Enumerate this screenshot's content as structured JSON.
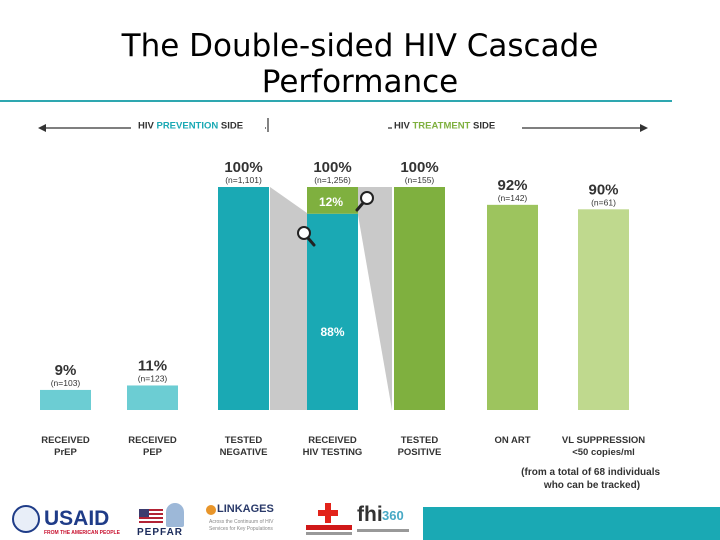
{
  "slide": {
    "title": "The Double-sided HIV Cascade Performance"
  },
  "header": {
    "prevention_prefix": "HIV ",
    "prevention_accent": "PREVENTION",
    "prevention_suffix": " SIDE",
    "treatment_prefix": "HIV ",
    "treatment_accent": "TREATMENT",
    "treatment_suffix": " SIDE"
  },
  "chart_data": {
    "type": "bar",
    "ylim": [
      0,
      100
    ],
    "grid": false,
    "categories": [
      [
        "RECEIVED",
        "PrEP"
      ],
      [
        "RECEIVED",
        "PEP"
      ],
      [
        "TESTED",
        "NEGATIVE"
      ],
      [
        "RECEIVED",
        "HIV TESTING"
      ],
      [
        "TESTED",
        "POSITIVE"
      ],
      [
        "ON ART"
      ],
      [
        "VL SUPPRESSION",
        "<50 copies/ml"
      ]
    ],
    "values": [
      9,
      11,
      100,
      100,
      100,
      92,
      90
    ],
    "value_labels": [
      "9%",
      "11%",
      "100%",
      "100%",
      "100%",
      "92%",
      "90%"
    ],
    "n_labels": [
      "(n=103)",
      "(n=123)",
      "(n=1,101)",
      "(n=1,256)",
      "(n=155)",
      "(n=142)",
      "(n=61)"
    ],
    "stack_for_received_hiv_testing": [
      {
        "label": "88%",
        "value": 88
      },
      {
        "label": "12%",
        "value": 12
      }
    ],
    "footnote": [
      "(from a total of 68 individuals",
      "who can be tracked)"
    ]
  },
  "colors": {
    "prevention_teal": "#1aa9b4",
    "prevention_light": "#6ccdd3",
    "treatment_green": "#7fb03f",
    "treatment_mid": "#9dc45e",
    "treatment_light": "#bfd98e",
    "connector_gray": "#c9c9c9",
    "title_rule": "#2ea7b0"
  },
  "logos": {
    "usaid": "USAID",
    "usaid_sub": "FROM THE AMERICAN PEOPLE",
    "pepfar": "PEPFAR",
    "linkages": "LINKAGES",
    "linkages_sub": "Across the Continuum of HIV Services for Key Populations",
    "fhi": "fhi",
    "fhi_num": "360"
  }
}
